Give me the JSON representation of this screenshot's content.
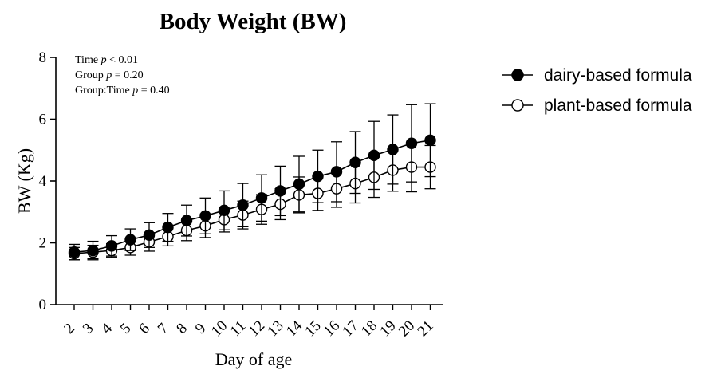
{
  "chart_data": {
    "type": "line",
    "title": "Body Weight (BW)",
    "xlabel": "Day of age",
    "ylabel": "BW (Kg)",
    "x": [
      2,
      3,
      4,
      5,
      6,
      7,
      8,
      9,
      10,
      11,
      12,
      13,
      14,
      15,
      16,
      17,
      18,
      19,
      20,
      21
    ],
    "ylim": [
      0,
      8
    ],
    "yticks": [
      0,
      2,
      4,
      6,
      8
    ],
    "grid": false,
    "legend_position": "right",
    "annotations": [
      {
        "prefix": "Time ",
        "p": "p",
        "rest": " < 0.01"
      },
      {
        "prefix": "Group ",
        "p": "p",
        "rest": " = 0.20"
      },
      {
        "prefix": "Group:Time ",
        "p": "p",
        "rest": " = 0.40"
      }
    ],
    "series": [
      {
        "name": "dairy-based formula",
        "marker": "filled-circle",
        "values": [
          1.7,
          1.75,
          1.9,
          2.1,
          2.25,
          2.5,
          2.72,
          2.87,
          3.05,
          3.22,
          3.45,
          3.68,
          3.9,
          4.15,
          4.3,
          4.6,
          4.83,
          5.02,
          5.22,
          5.32
        ],
        "errors": [
          0.25,
          0.3,
          0.33,
          0.35,
          0.4,
          0.45,
          0.5,
          0.58,
          0.63,
          0.7,
          0.75,
          0.8,
          0.9,
          0.85,
          0.97,
          1.0,
          1.1,
          1.12,
          1.25,
          1.18
        ]
      },
      {
        "name": "plant-based formula",
        "marker": "open-circle",
        "values": [
          1.65,
          1.7,
          1.75,
          1.85,
          2.03,
          2.2,
          2.4,
          2.55,
          2.75,
          2.9,
          3.08,
          3.25,
          3.55,
          3.6,
          3.75,
          3.92,
          4.12,
          4.35,
          4.45,
          4.45
        ],
        "errors": [
          0.2,
          0.22,
          0.22,
          0.25,
          0.3,
          0.3,
          0.33,
          0.38,
          0.4,
          0.45,
          0.48,
          0.5,
          0.58,
          0.55,
          0.6,
          0.63,
          0.65,
          0.68,
          0.8,
          0.7
        ]
      }
    ],
    "colors": {
      "line": "#000000",
      "filled": "#000000",
      "open_fill": "#ffffff"
    }
  }
}
